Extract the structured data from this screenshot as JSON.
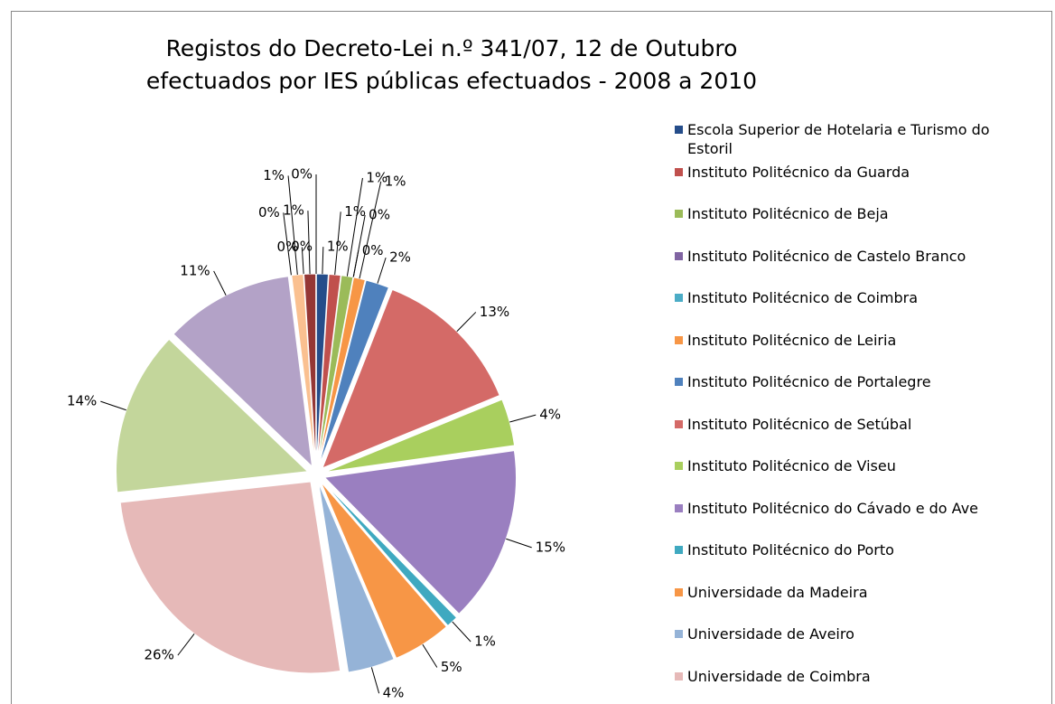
{
  "chart_data": {
    "type": "pie",
    "title": [
      "Registos do Decreto-Lei n.º 341/07, 12 de Outubro",
      "efectuados por IES públicas efectuados - 2008 a 2010"
    ],
    "categories": [
      "Escola Superior de Hotelaria e Turismo do Estoril",
      "Instituto Politécnico da Guarda",
      "Instituto Politécnico de Beja",
      "Instituto Politécnico de Castelo Branco",
      "Instituto Politécnico de Coimbra",
      "Instituto Politécnico de Leiria",
      "Instituto Politécnico de Portalegre",
      "Instituto Politécnico de Setúbal",
      "Instituto Politécnico de Viseu",
      "Instituto Politécnico do Cávado e do Ave",
      "Instituto Politécnico do Porto",
      "Universidade da Madeira",
      "Universidade de Aveiro",
      "Universidade de Coimbra",
      null,
      null,
      null,
      null,
      null,
      null,
      null,
      null
    ],
    "values": [
      1,
      1,
      1,
      0,
      0,
      1,
      2,
      13,
      4,
      15,
      1,
      5,
      4,
      26,
      14,
      11,
      0,
      1,
      0,
      1,
      0,
      0
    ],
    "value_labels": [
      "1%",
      "1%",
      "1%",
      "0%",
      "0%",
      "1%",
      "2%",
      "13%",
      "4%",
      "15%",
      "1%",
      "5%",
      "4%",
      "26%",
      "14%",
      "11%",
      "0%",
      "1%",
      "0%",
      "1%",
      "0%",
      "0%"
    ],
    "colors": [
      "#254d8a",
      "#c0504d",
      "#9bbb59",
      "#8064a2",
      "#4bacc6",
      "#f79646",
      "#4f81bd",
      "#d46a67",
      "#a9cf5e",
      "#9a7fc0",
      "#3fa9c0",
      "#f79646",
      "#95b3d7",
      "#e6b9b8",
      "#c3d69b",
      "#b3a2c7",
      "#92cddc",
      "#fac090",
      "#376092",
      "#953735",
      "#77933c",
      "#604a7b"
    ],
    "legend": "right"
  }
}
